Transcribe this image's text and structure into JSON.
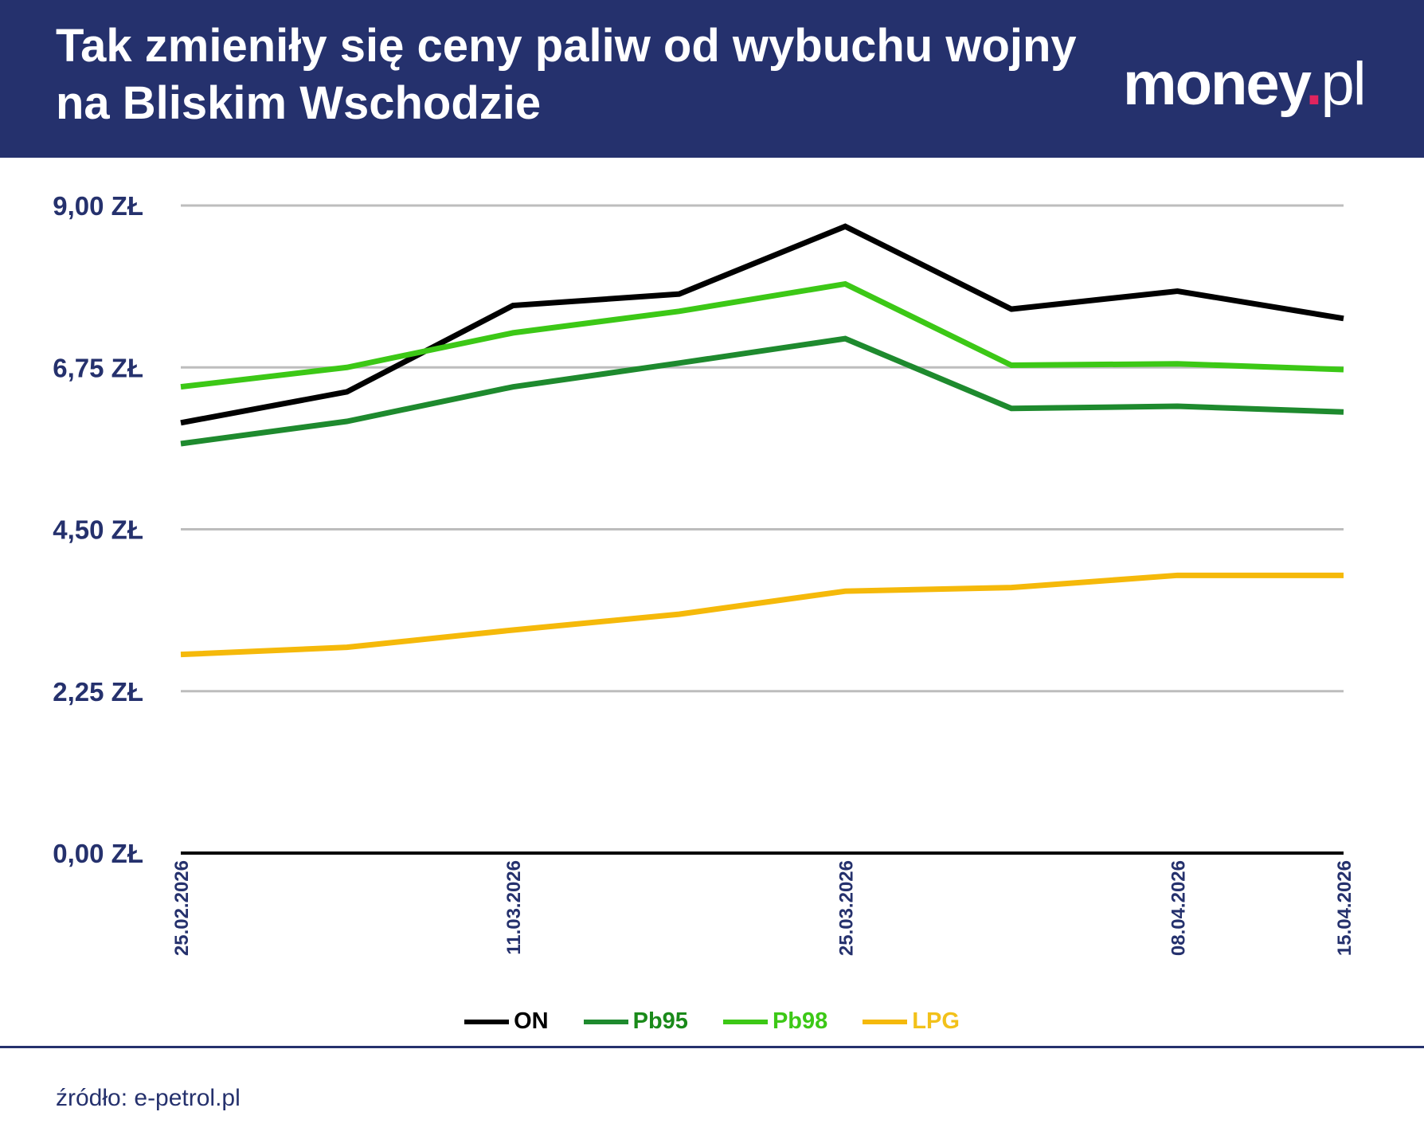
{
  "header": {
    "title": "Tak zmieniły się ceny paliw od wybuchu wojny na Bliskim Wschodzie",
    "logo_main": "money",
    "logo_dot": ".",
    "logo_suffix": "pl",
    "background": "#25316d"
  },
  "chart_data": {
    "type": "line",
    "title": "Tak zmieniły się ceny paliw od wybuchu wojny na Bliskim Wschodzie",
    "x_tick_labels": [
      "25.02.2026",
      "",
      "11.03.2026",
      "",
      "25.03.2026",
      "",
      "08.04.2026",
      "15.04.2026"
    ],
    "y_ticks": [
      0,
      2.25,
      4.5,
      6.75,
      9
    ],
    "y_tick_labels": [
      "0,00 ZŁ",
      "2,25 ZŁ",
      "4,50 ZŁ",
      "6,75 ZŁ",
      "9,00 ZŁ"
    ],
    "ylim": [
      0,
      9
    ],
    "grid": true,
    "legend_position": "bottom",
    "series": [
      {
        "name": "ON",
        "color": "#000000",
        "values": [
          5.98,
          6.41,
          7.61,
          7.77,
          8.71,
          7.56,
          7.81,
          7.43
        ]
      },
      {
        "name": "Pb95",
        "color": "#1e8a2e",
        "values": [
          5.69,
          6.0,
          6.48,
          6.81,
          7.15,
          6.18,
          6.21,
          6.13
        ]
      },
      {
        "name": "Pb98",
        "color": "#3cc816",
        "values": [
          6.48,
          6.75,
          7.23,
          7.53,
          7.91,
          6.78,
          6.8,
          6.72
        ]
      },
      {
        "name": "LPG",
        "color": "#f5b90a",
        "values": [
          2.76,
          2.86,
          3.1,
          3.32,
          3.64,
          3.69,
          3.86,
          3.86
        ]
      }
    ]
  },
  "footer": {
    "source": "źródło: e-petrol.pl"
  }
}
